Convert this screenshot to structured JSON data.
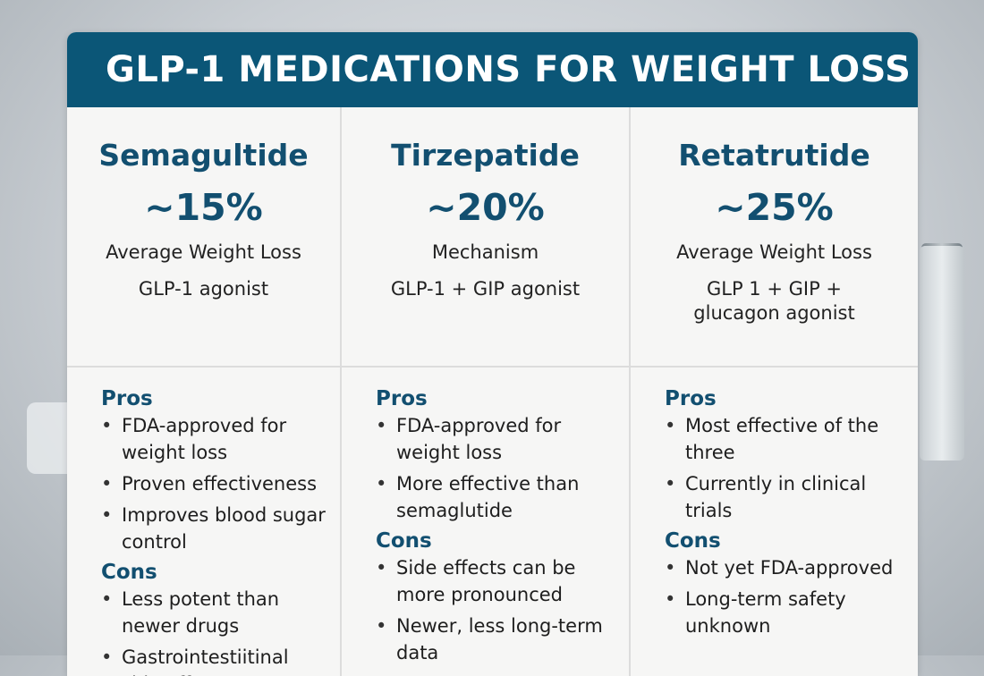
{
  "title": "GLP-1 MEDICATIONS FOR WEIGHT LOSS",
  "pros_label": "Pros",
  "cons_label": "Cons",
  "drugs": [
    {
      "name": "Semagultide",
      "percent": "~15%",
      "subtitle": "Average Weight Loss",
      "mechanism": "GLP-1 agonist",
      "pros": [
        "FDA-approved for weight loss",
        "Proven effectiveness",
        "Improves blood sugar control"
      ],
      "cons": [
        "Less potent than newer drugs",
        "Gastrointestiitinal side effects"
      ]
    },
    {
      "name": "Tirzepatide",
      "percent": "~20%",
      "subtitle": "Mechanism",
      "mechanism": "GLP-1 + GIP agonist",
      "pros": [
        "FDA-approved for weight loss",
        "More effective than semaglutide"
      ],
      "cons": [
        "Side effects can be more pronounced",
        "Newer, less long-term data"
      ]
    },
    {
      "name": "Retatrutide",
      "percent": "~25%",
      "subtitle": "Average Weight Loss",
      "mechanism": "GLP 1 + GIP + glucagon agonist",
      "pros": [
        "Most effective of the three",
        "Currently in clinical trials"
      ],
      "cons": [
        "Not yet FDA-approved",
        "Long-term safety unknown"
      ]
    }
  ],
  "colors": {
    "header": "#0b5677",
    "heading_text": "#124f70"
  }
}
